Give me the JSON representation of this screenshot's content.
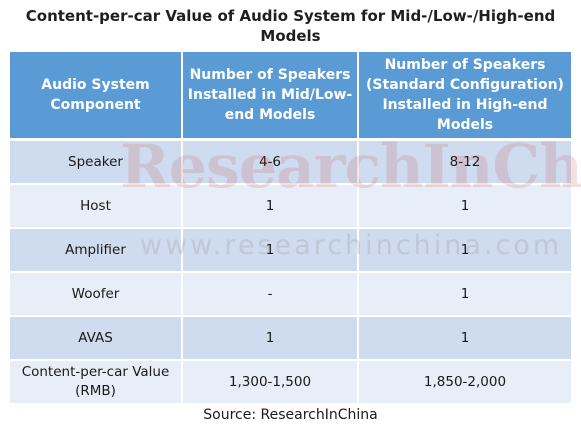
{
  "title": "Content-per-car Value of Audio System for Mid-/Low-/High-end Models",
  "table": {
    "headers": [
      "Audio System Component",
      "Number of Speakers Installed in Mid/Low-end Models",
      "Number of Speakers (Standard Configuration) Installed in  High-end Models"
    ],
    "rows": [
      [
        "Speaker",
        "4-6",
        "8-12"
      ],
      [
        "Host",
        "1",
        "1"
      ],
      [
        "Amplifier",
        "1",
        "1"
      ],
      [
        "Woofer",
        "-",
        "1"
      ],
      [
        "AVAS",
        "1",
        "1"
      ],
      [
        "Content-per-car Value (RMB)",
        "1,300-1,500",
        "1,850-2,000"
      ]
    ]
  },
  "watermark": {
    "brand": "ResearchInChina",
    "url": "www.researchinchina.com"
  },
  "source": "Source: ResearchInChina"
}
